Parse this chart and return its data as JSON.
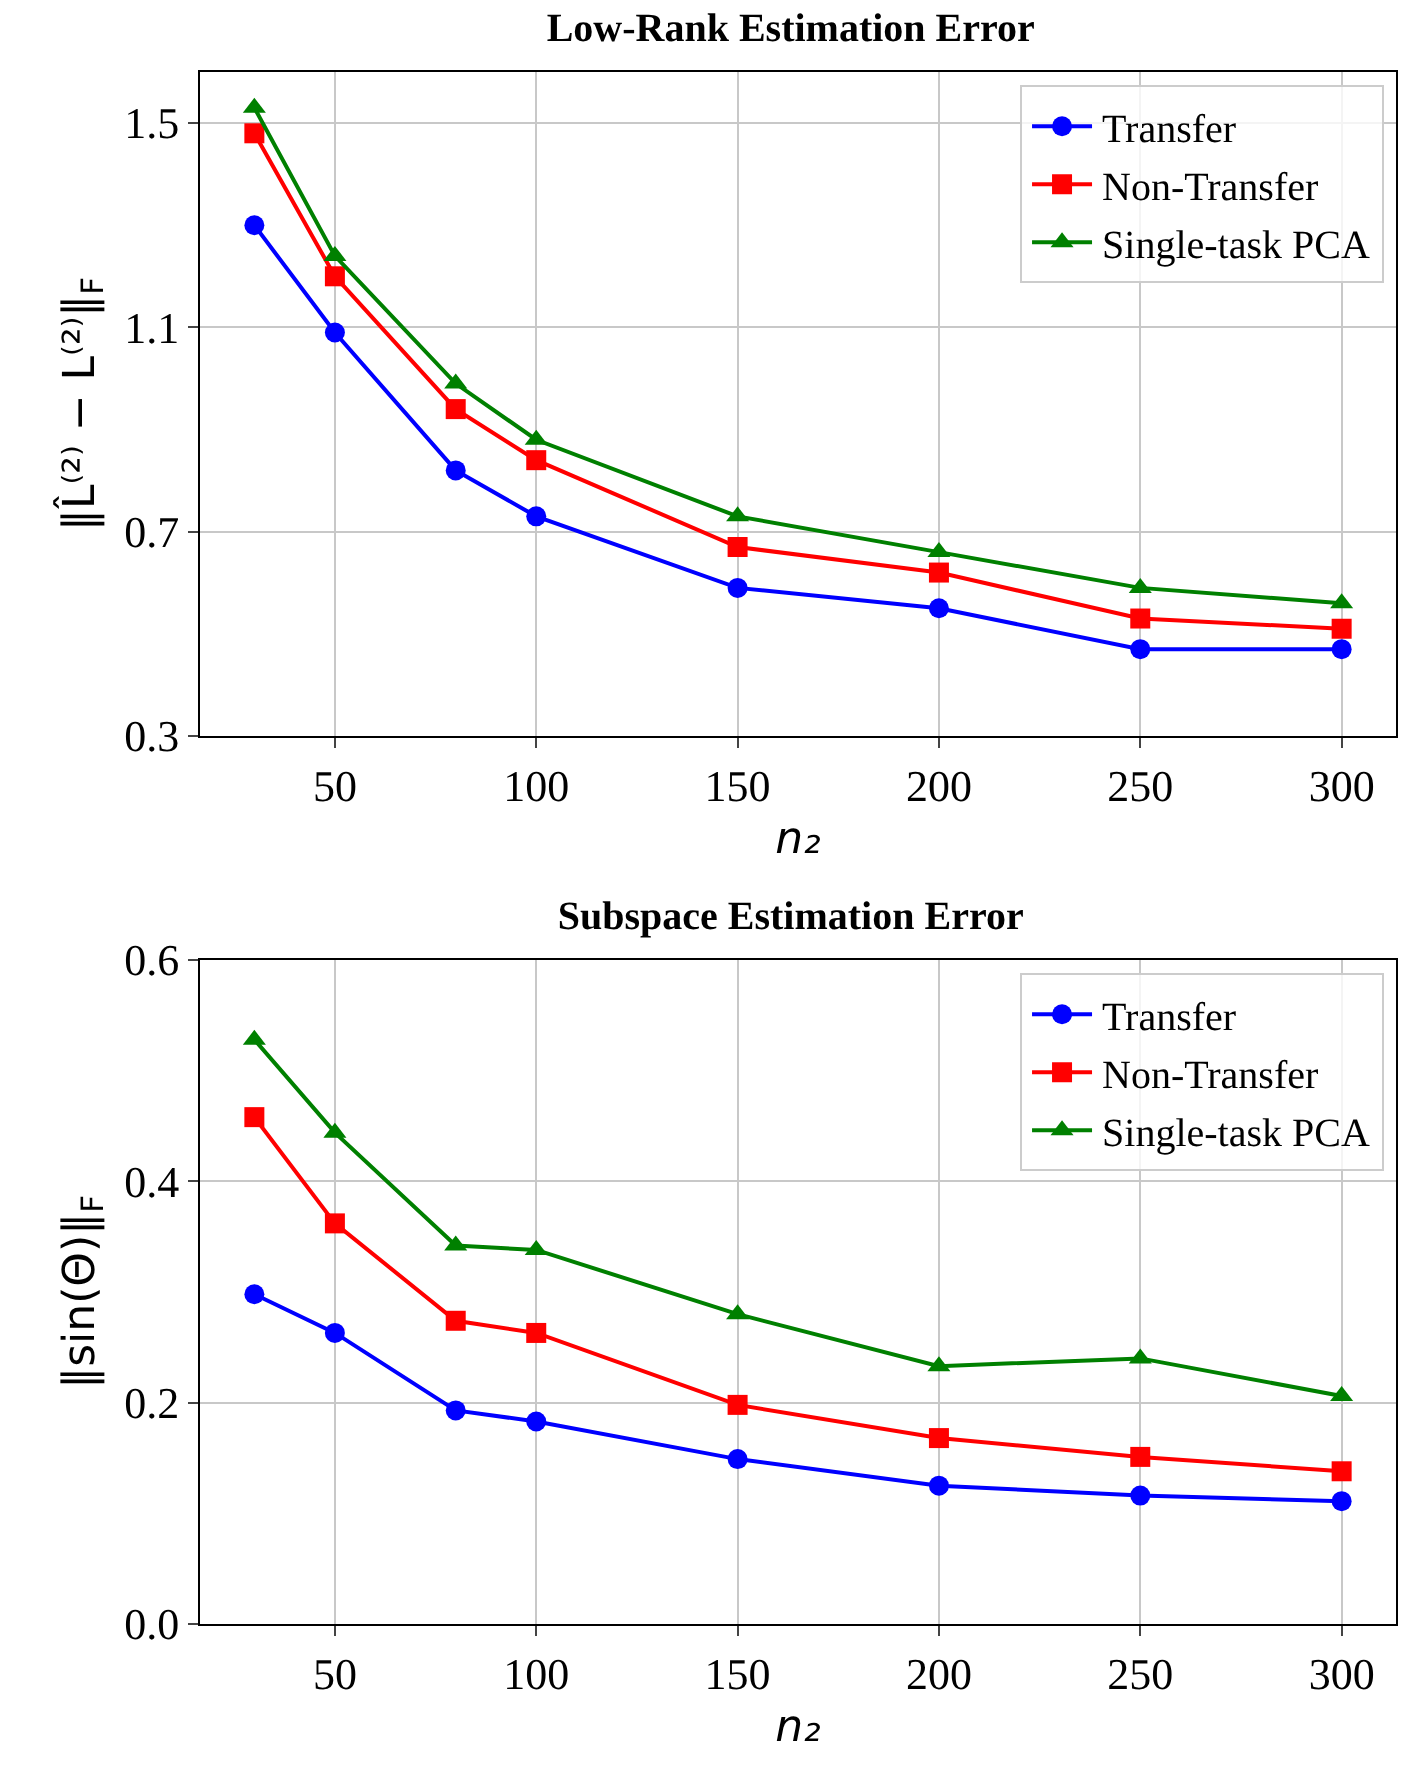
{
  "chart_data": [
    {
      "type": "line",
      "title": "Low-Rank Estimation Error",
      "xlabel": "n₂",
      "ylabel": "‖L̂⁽²⁾ − L⁽²⁾‖$_{F}$",
      "x": [
        30,
        50,
        80,
        100,
        150,
        200,
        250,
        300
      ],
      "series": [
        {
          "name": "Transfer",
          "color": "#0000ff",
          "marker": "circle",
          "values": [
            1.3,
            1.09,
            0.82,
            0.73,
            0.59,
            0.55,
            0.47,
            0.47
          ]
        },
        {
          "name": "Non-Transfer",
          "color": "#ff0000",
          "marker": "square",
          "values": [
            1.48,
            1.2,
            0.94,
            0.84,
            0.67,
            0.62,
            0.53,
            0.51
          ]
        },
        {
          "name": "Single-task PCA",
          "color": "#008000",
          "marker": "triangle",
          "values": [
            1.53,
            1.24,
            0.99,
            0.88,
            0.73,
            0.66,
            0.59,
            0.56
          ]
        }
      ],
      "xlim": [
        16.5,
        313.5
      ],
      "xticks": [
        50,
        100,
        150,
        200,
        250,
        300
      ],
      "ylim": [
        0.3,
        1.6
      ],
      "yticks": [
        0.3,
        0.7,
        1.1,
        1.5
      ],
      "grid": true,
      "legend": "top right",
      "line_style": "solid"
    },
    {
      "type": "line",
      "title": "Subspace Estimation Error",
      "xlabel": "n₂",
      "ylabel": "‖sin(Θ)‖$_{F}$",
      "x": [
        30,
        50,
        80,
        100,
        150,
        200,
        250,
        300
      ],
      "series": [
        {
          "name": "Transfer",
          "color": "#0000ff",
          "marker": "circle",
          "values": [
            0.298,
            0.263,
            0.193,
            0.183,
            0.149,
            0.125,
            0.116,
            0.111
          ]
        },
        {
          "name": "Non-Transfer",
          "color": "#ff0000",
          "marker": "square",
          "values": [
            0.458,
            0.362,
            0.274,
            0.263,
            0.198,
            0.168,
            0.151,
            0.138
          ]
        },
        {
          "name": "Single-task PCA",
          "color": "#008000",
          "marker": "triangle",
          "values": [
            0.528,
            0.444,
            0.342,
            0.338,
            0.28,
            0.233,
            0.24,
            0.206
          ]
        }
      ],
      "xlim": [
        16.5,
        313.5
      ],
      "xticks": [
        50,
        100,
        150,
        200,
        250,
        300
      ],
      "ylim": [
        0,
        0.6
      ],
      "yticks": [
        {
          "value": 0,
          "label": "0.0"
        },
        0.2,
        0.4,
        0.6
      ],
      "grid": true,
      "legend": "top right",
      "line_style": "solid"
    }
  ]
}
